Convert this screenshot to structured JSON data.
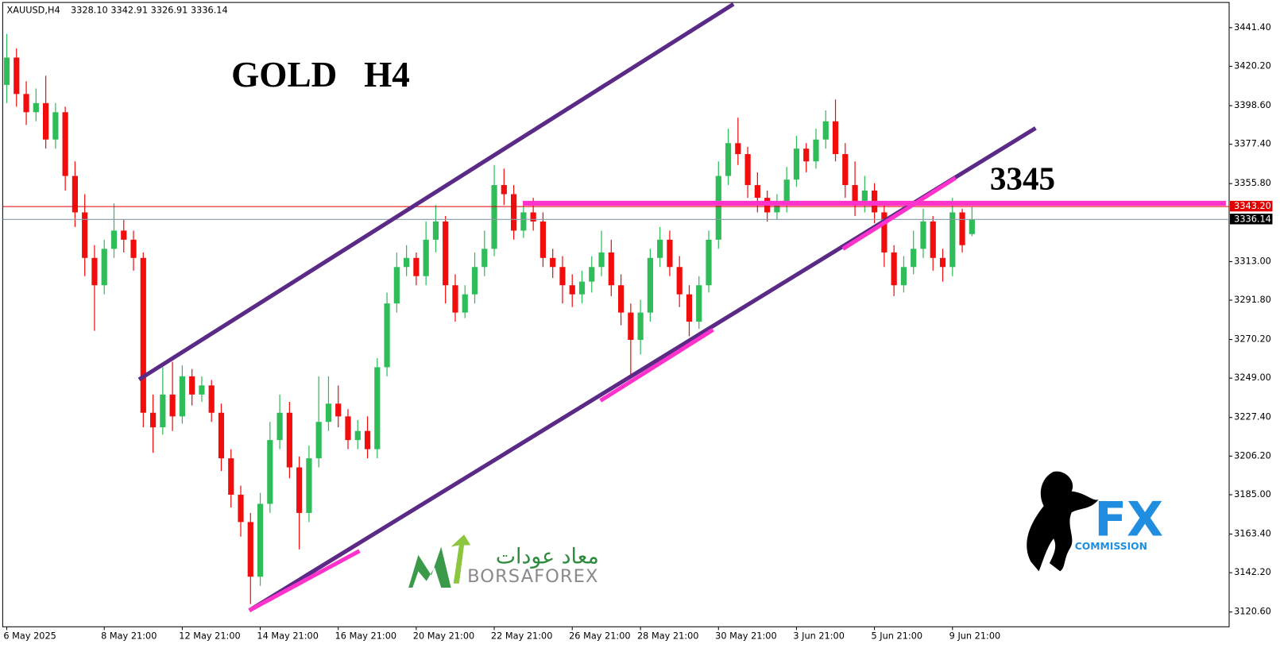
{
  "chart_data": {
    "type": "candlestick",
    "quote": {
      "symbol": "XAUUSD,H4",
      "open": "3328.10",
      "high": "3342.91",
      "low": "3326.91",
      "close": "3336.14"
    },
    "title": "GOLD   H4",
    "levels": [
      {
        "value": 3345,
        "label": "3345",
        "color": "#ff33cc"
      }
    ],
    "ask_line": {
      "value": 3343.2,
      "label": "3343.20",
      "color": "#e00000"
    },
    "bid_color": "#8899aa",
    "up_color": "#2ebd59",
    "down_color": "#f20d0d",
    "ylim": [
      3112.5,
      3456.6
    ],
    "yticks": [
      {
        "value": 3441.4,
        "label": "3441.40"
      },
      {
        "value": 3420.2,
        "label": "3420.20"
      },
      {
        "value": 3398.6,
        "label": "3398.60"
      },
      {
        "value": 3377.4,
        "label": "3377.40"
      },
      {
        "value": 3355.8,
        "label": "3355.80"
      },
      {
        "value": 3313,
        "label": "3313.00"
      },
      {
        "value": 3291.8,
        "label": "3291.80"
      },
      {
        "value": 3270.2,
        "label": "3270.20"
      },
      {
        "value": 3249,
        "label": "3249.00"
      },
      {
        "value": 3227.4,
        "label": "3227.40"
      },
      {
        "value": 3206.2,
        "label": "3206.20"
      },
      {
        "value": 3185,
        "label": "3185.00"
      },
      {
        "value": 3163.4,
        "label": "3163.40"
      },
      {
        "value": 3142.2,
        "label": "3142.20"
      },
      {
        "value": 3120.6,
        "label": "3120.60"
      }
    ],
    "categories": [
      "6 May 2025",
      null,
      null,
      null,
      null,
      null,
      null,
      null,
      null,
      null,
      "8 May 21:00",
      null,
      null,
      null,
      null,
      null,
      null,
      null,
      "12 May 21:00",
      null,
      null,
      null,
      null,
      null,
      null,
      null,
      "14 May 21:00",
      null,
      null,
      null,
      null,
      null,
      null,
      null,
      "16 May 21:00",
      null,
      null,
      null,
      null,
      null,
      null,
      null,
      "20 May 21:00",
      null,
      null,
      null,
      null,
      null,
      null,
      null,
      "22 May 21:00",
      null,
      null,
      null,
      null,
      null,
      null,
      null,
      "26 May 21:00",
      null,
      null,
      null,
      null,
      null,
      null,
      "28 May 21:00",
      null,
      null,
      null,
      null,
      null,
      null,
      null,
      "30 May 21:00",
      null,
      null,
      null,
      null,
      null,
      null,
      null,
      "3 Jun 21:00",
      null,
      null,
      null,
      null,
      null,
      null,
      null,
      "5 Jun 21:00",
      null,
      null,
      null,
      null,
      null,
      null,
      null,
      "9 Jun 21:00",
      null,
      null
    ],
    "open": [
      3410,
      3425,
      3405,
      3395,
      3400,
      3380,
      3395,
      3360,
      3340,
      3315,
      3300,
      3320,
      3330,
      3325,
      3315,
      3230,
      3222,
      3240,
      3228,
      3250,
      3240,
      3245,
      3230,
      3205,
      3185,
      3170,
      3140,
      3180,
      3215,
      3230,
      3200,
      3175,
      3205,
      3225,
      3235,
      3228,
      3215,
      3220,
      3210,
      3255,
      3290,
      3310,
      3315,
      3305,
      3325,
      3335,
      3300,
      3285,
      3295,
      3310,
      3320,
      3355,
      3350,
      3330,
      3340,
      3335,
      3315,
      3310,
      3300,
      3295,
      3302,
      3310,
      3318,
      3300,
      3285,
      3270,
      3285,
      3315,
      3325,
      3310,
      3295,
      3280,
      3300,
      3325,
      3360,
      3378,
      3372,
      3355,
      3348,
      3340,
      3345,
      3358,
      3375,
      3368,
      3380,
      3390,
      3372,
      3355,
      3345,
      3352,
      3340,
      3318,
      3300,
      3310,
      3320,
      3335,
      3315,
      3310,
      3340,
      3328.1
    ],
    "high": [
      3438,
      3430,
      3412,
      3408,
      3415,
      3400,
      3398,
      3368,
      3350,
      3322,
      3325,
      3345,
      3336,
      3330,
      3318,
      3240,
      3255,
      3258,
      3256,
      3254,
      3250,
      3248,
      3235,
      3210,
      3190,
      3175,
      3186,
      3225,
      3240,
      3236,
      3206,
      3212,
      3250,
      3250,
      3245,
      3232,
      3226,
      3228,
      3260,
      3296,
      3318,
      3322,
      3318,
      3335,
      3344,
      3338,
      3306,
      3300,
      3318,
      3330,
      3366,
      3364,
      3355,
      3345,
      3348,
      3340,
      3320,
      3316,
      3306,
      3308,
      3316,
      3330,
      3325,
      3306,
      3290,
      3292,
      3320,
      3332,
      3330,
      3316,
      3300,
      3305,
      3330,
      3368,
      3386,
      3392,
      3376,
      3362,
      3352,
      3350,
      3365,
      3382,
      3378,
      3386,
      3396,
      3402,
      3378,
      3368,
      3360,
      3356,
      3345,
      3322,
      3316,
      3330,
      3342,
      3338,
      3320,
      3348,
      3342,
      3342.91
    ],
    "low": [
      3400,
      3398,
      3388,
      3390,
      3375,
      3375,
      3352,
      3332,
      3305,
      3275,
      3295,
      3315,
      3318,
      3308,
      3222,
      3208,
      3218,
      3220,
      3224,
      3234,
      3236,
      3225,
      3198,
      3178,
      3162,
      3125,
      3135,
      3175,
      3210,
      3194,
      3155,
      3170,
      3200,
      3220,
      3222,
      3210,
      3210,
      3205,
      3205,
      3250,
      3285,
      3305,
      3300,
      3300,
      3318,
      3290,
      3280,
      3282,
      3290,
      3305,
      3316,
      3344,
      3325,
      3326,
      3330,
      3310,
      3304,
      3290,
      3288,
      3290,
      3296,
      3305,
      3294,
      3278,
      3250,
      3262,
      3280,
      3310,
      3305,
      3288,
      3272,
      3276,
      3296,
      3320,
      3355,
      3366,
      3348,
      3340,
      3335,
      3336,
      3340,
      3354,
      3362,
      3364,
      3375,
      3368,
      3348,
      3338,
      3340,
      3334,
      3310,
      3294,
      3296,
      3306,
      3315,
      3308,
      3302,
      3305,
      3318,
      3326.91
    ],
    "close": [
      3425,
      3405,
      3395,
      3400,
      3380,
      3395,
      3360,
      3340,
      3315,
      3300,
      3320,
      3330,
      3325,
      3315,
      3230,
      3222,
      3240,
      3228,
      3250,
      3240,
      3245,
      3230,
      3205,
      3185,
      3170,
      3140,
      3180,
      3215,
      3230,
      3200,
      3175,
      3205,
      3225,
      3235,
      3228,
      3215,
      3220,
      3210,
      3255,
      3290,
      3310,
      3315,
      3305,
      3325,
      3335,
      3300,
      3285,
      3295,
      3310,
      3320,
      3355,
      3350,
      3330,
      3340,
      3335,
      3315,
      3310,
      3300,
      3295,
      3302,
      3310,
      3318,
      3300,
      3285,
      3270,
      3285,
      3315,
      3325,
      3310,
      3295,
      3280,
      3300,
      3325,
      3360,
      3378,
      3372,
      3355,
      3348,
      3340,
      3345,
      3358,
      3375,
      3368,
      3380,
      3390,
      3372,
      3355,
      3345,
      3352,
      3340,
      3318,
      3300,
      3310,
      3320,
      3335,
      3315,
      3310,
      3340,
      3322,
      3336.14
    ],
    "logos": {
      "borsa": "BORSAFOREX",
      "borsa_arabic": "معاد عودات",
      "fx": "FX",
      "fx_sub": "COMMISSION"
    }
  }
}
